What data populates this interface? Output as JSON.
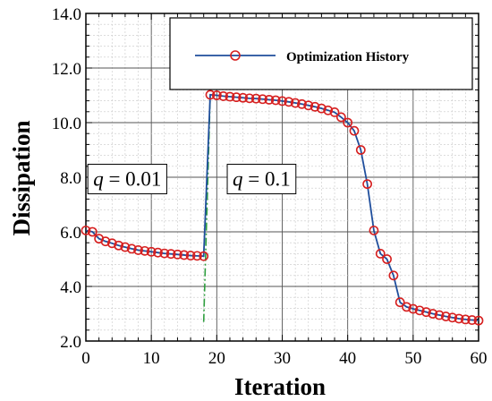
{
  "chart_data": {
    "type": "line",
    "xlabel": "Iteration",
    "ylabel": "Dissipation",
    "xlim": [
      0,
      60
    ],
    "ylim": [
      2.0,
      14.0
    ],
    "x_ticks": [
      0,
      10,
      20,
      30,
      40,
      50,
      60
    ],
    "x_tick_labels": [
      "0",
      "10",
      "20",
      "30",
      "40",
      "50",
      "60"
    ],
    "y_ticks": [
      2,
      4,
      6,
      8,
      10,
      12,
      14
    ],
    "y_tick_labels": [
      "2.0",
      "4.0",
      "6.0",
      "8.0",
      "10.0",
      "12.0",
      "14.0"
    ],
    "grid": true,
    "legend_position": "top-right",
    "series": [
      {
        "name": "Optimization History",
        "line_color": "#1f4e9c",
        "marker_color": "#d62020",
        "x": [
          0,
          1,
          2,
          3,
          4,
          5,
          6,
          7,
          8,
          9,
          10,
          11,
          12,
          13,
          14,
          15,
          16,
          17,
          18,
          19,
          20,
          21,
          22,
          23,
          24,
          25,
          26,
          27,
          28,
          29,
          30,
          31,
          32,
          33,
          34,
          35,
          36,
          37,
          38,
          39,
          40,
          41,
          42,
          43,
          44,
          45,
          46,
          47,
          48,
          49,
          50,
          51,
          52,
          53,
          54,
          55,
          56,
          57,
          58,
          59,
          60
        ],
        "y": [
          6.05,
          6.0,
          5.75,
          5.65,
          5.58,
          5.5,
          5.44,
          5.38,
          5.33,
          5.3,
          5.27,
          5.24,
          5.21,
          5.19,
          5.17,
          5.15,
          5.13,
          5.12,
          5.11,
          11.02,
          11.0,
          10.97,
          10.95,
          10.93,
          10.91,
          10.89,
          10.88,
          10.86,
          10.84,
          10.82,
          10.79,
          10.76,
          10.72,
          10.68,
          10.63,
          10.58,
          10.52,
          10.45,
          10.38,
          10.2,
          10.0,
          9.7,
          9.0,
          7.75,
          6.05,
          5.2,
          5.0,
          4.4,
          3.42,
          3.25,
          3.18,
          3.12,
          3.06,
          3.0,
          2.95,
          2.9,
          2.86,
          2.82,
          2.79,
          2.77,
          2.75
        ]
      }
    ],
    "annotations": [
      {
        "text_parts": [
          "q",
          " = 0.01"
        ],
        "x": 0.3,
        "y": 7.95
      },
      {
        "text_parts": [
          "q",
          " = 0.1"
        ],
        "x": 21.6,
        "y": 7.95
      }
    ],
    "vertical_line": {
      "x_bottom": 18,
      "x_top": 19,
      "y_bottom": 2.7,
      "y_top": 11.0,
      "color": "#2e9e3e"
    }
  }
}
